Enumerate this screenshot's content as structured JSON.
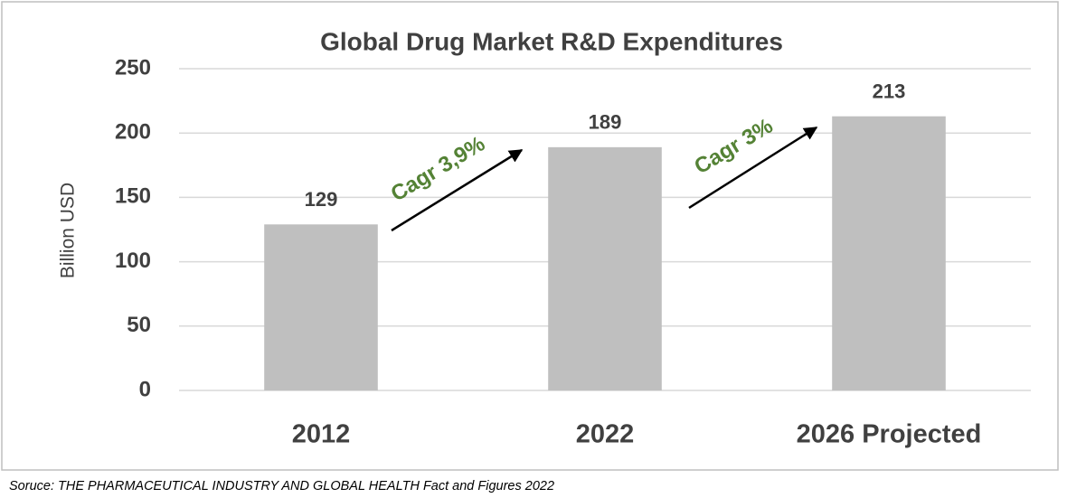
{
  "chart_data": {
    "type": "bar",
    "title": "Global Drug Market R&D Expenditures",
    "ylabel": "Billion USD",
    "categories": [
      "2012",
      "2022",
      "2026 Projected"
    ],
    "values": [
      129,
      189,
      213
    ],
    "color": "#bfbfbf",
    "ylim": [
      0,
      250
    ],
    "yticks": [
      0,
      50,
      100,
      150,
      200,
      250
    ],
    "grid": true,
    "annotations": [
      "Cagr 3,9%",
      "Cagr 3%"
    ],
    "source": "Soruce: THE PHARMACEUTICAL INDUSTRY AND GLOBAL HEALTH Fact and Figures 2022"
  }
}
